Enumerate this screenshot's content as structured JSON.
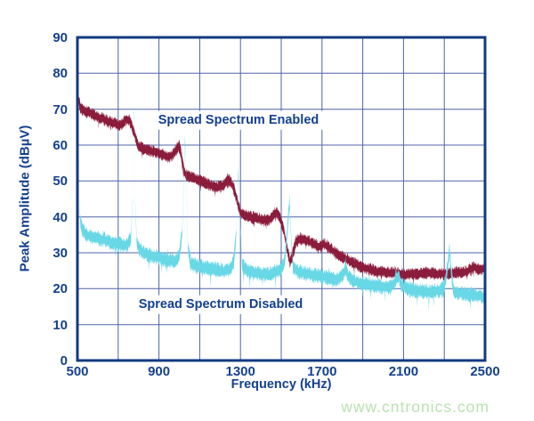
{
  "page": {
    "background": "#ffffff"
  },
  "watermark": {
    "text": "www.cntronics.com",
    "color": "#b9e2af"
  },
  "chart_data": {
    "type": "line",
    "title": "",
    "xlabel": "Frequency (kHz)",
    "ylabel": "Peak Amplitude (dBµV)",
    "xlim": [
      500,
      2500
    ],
    "ylim": [
      0,
      90
    ],
    "x_ticks": [
      500,
      900,
      1300,
      1700,
      2100,
      2500
    ],
    "y_ticks": [
      0,
      10,
      20,
      30,
      40,
      50,
      60,
      70,
      80,
      90
    ],
    "x_grid_step_khz": 200,
    "y_grid_step_db": 10,
    "grid": true,
    "legend_position": "inline-annotations",
    "colors": {
      "axis_border": "#123a7f",
      "grid": "#4d64a7",
      "label_text": "#14408f",
      "enabled": "#8b1c3c",
      "disabled": "#68d7e6"
    },
    "annotations": [
      {
        "text": "Spread Spectrum Enabled",
        "x_khz": 1290,
        "y_db": 67
      },
      {
        "text": "Spread Spectrum Disabled",
        "x_khz": 1205,
        "y_db": 15.5
      }
    ],
    "series": [
      {
        "key": "enabled",
        "name": "Spread Spectrum Enabled",
        "color_key": "enabled",
        "band_halfwidth_db": 1.3,
        "hair_db": 1.1,
        "points": [
          [
            500,
            60
          ],
          [
            501,
            68
          ],
          [
            503,
            74.5
          ],
          [
            506,
            72.5
          ],
          [
            512,
            71
          ],
          [
            520,
            70
          ],
          [
            535,
            69.5
          ],
          [
            560,
            69
          ],
          [
            590,
            68
          ],
          [
            620,
            67.5
          ],
          [
            650,
            66.5
          ],
          [
            680,
            66
          ],
          [
            705,
            65.5
          ],
          [
            722,
            66
          ],
          [
            738,
            67.3
          ],
          [
            752,
            67
          ],
          [
            766,
            65.5
          ],
          [
            778,
            63.5
          ],
          [
            788,
            61.5
          ],
          [
            800,
            59.5
          ],
          [
            825,
            59
          ],
          [
            855,
            58.5
          ],
          [
            890,
            58
          ],
          [
            920,
            57.3
          ],
          [
            945,
            56.6
          ],
          [
            962,
            57
          ],
          [
            980,
            58.3
          ],
          [
            997,
            59.6
          ],
          [
            1008,
            58
          ],
          [
            1018,
            54
          ],
          [
            1030,
            51.8
          ],
          [
            1060,
            51
          ],
          [
            1100,
            50.2
          ],
          [
            1140,
            49.2
          ],
          [
            1180,
            48.2
          ],
          [
            1215,
            48.8
          ],
          [
            1242,
            50.3
          ],
          [
            1258,
            49
          ],
          [
            1272,
            47.2
          ],
          [
            1288,
            43.5
          ],
          [
            1302,
            41
          ],
          [
            1330,
            40.3
          ],
          [
            1370,
            39.7
          ],
          [
            1405,
            39.2
          ],
          [
            1435,
            39
          ],
          [
            1458,
            40
          ],
          [
            1478,
            41.3
          ],
          [
            1492,
            39.8
          ],
          [
            1512,
            36.5
          ],
          [
            1528,
            31.5
          ],
          [
            1543,
            27.2
          ],
          [
            1556,
            29.5
          ],
          [
            1572,
            33
          ],
          [
            1592,
            34
          ],
          [
            1625,
            33.4
          ],
          [
            1655,
            32.8
          ],
          [
            1682,
            31.6
          ],
          [
            1706,
            32.4
          ],
          [
            1730,
            31.6
          ],
          [
            1760,
            30.4
          ],
          [
            1800,
            28.8
          ],
          [
            1840,
            27.6
          ],
          [
            1880,
            26.4
          ],
          [
            1920,
            25.6
          ],
          [
            1960,
            25
          ],
          [
            2010,
            24.6
          ],
          [
            2060,
            24.3
          ],
          [
            2110,
            24
          ],
          [
            2160,
            24.1
          ],
          [
            2210,
            24.4
          ],
          [
            2260,
            24
          ],
          [
            2310,
            24.1
          ],
          [
            2360,
            24.4
          ],
          [
            2410,
            24.8
          ],
          [
            2445,
            26
          ],
          [
            2470,
            25.4
          ],
          [
            2500,
            25.6
          ]
        ]
      },
      {
        "key": "disabled",
        "name": "Spread Spectrum Disabled",
        "color_key": "disabled",
        "band_halfwidth_db": 1.6,
        "hair_db": 2.2,
        "points": [
          [
            500,
            26
          ],
          [
            502,
            62
          ],
          [
            503,
            79
          ],
          [
            505,
            62
          ],
          [
            509,
            45
          ],
          [
            514,
            39
          ],
          [
            520,
            37
          ],
          [
            540,
            35.3
          ],
          [
            565,
            34.5
          ],
          [
            595,
            34
          ],
          [
            625,
            33.6
          ],
          [
            658,
            33
          ],
          [
            695,
            32.5
          ],
          [
            725,
            32
          ],
          [
            748,
            32.5
          ],
          [
            762,
            34
          ],
          [
            771,
            45
          ],
          [
            777,
            70
          ],
          [
            783,
            45
          ],
          [
            791,
            33
          ],
          [
            805,
            30.8
          ],
          [
            830,
            29.8
          ],
          [
            860,
            29.2
          ],
          [
            900,
            28.6
          ],
          [
            940,
            28
          ],
          [
            975,
            27.6
          ],
          [
            1000,
            29
          ],
          [
            1014,
            36
          ],
          [
            1022,
            50
          ],
          [
            1028,
            62
          ],
          [
            1034,
            50
          ],
          [
            1042,
            32
          ],
          [
            1055,
            27
          ],
          [
            1090,
            26.3
          ],
          [
            1130,
            25.8
          ],
          [
            1170,
            25.4
          ],
          [
            1210,
            25
          ],
          [
            1245,
            25.2
          ],
          [
            1266,
            27
          ],
          [
            1280,
            36
          ],
          [
            1289,
            53
          ],
          [
            1298,
            38
          ],
          [
            1308,
            26.5
          ],
          [
            1330,
            25
          ],
          [
            1365,
            24.4
          ],
          [
            1400,
            24
          ],
          [
            1440,
            24
          ],
          [
            1470,
            24.6
          ],
          [
            1500,
            25.4
          ],
          [
            1518,
            28
          ],
          [
            1532,
            38
          ],
          [
            1540,
            44
          ],
          [
            1549,
            34
          ],
          [
            1558,
            26
          ],
          [
            1580,
            24.8
          ],
          [
            1615,
            24.2
          ],
          [
            1650,
            23.8
          ],
          [
            1690,
            23.4
          ],
          [
            1730,
            23
          ],
          [
            1770,
            22.6
          ],
          [
            1800,
            23.4
          ],
          [
            1815,
            26
          ],
          [
            1828,
            23.2
          ],
          [
            1860,
            22
          ],
          [
            1900,
            21.5
          ],
          [
            1940,
            21
          ],
          [
            1985,
            20.6
          ],
          [
            2030,
            20.2
          ],
          [
            2060,
            22
          ],
          [
            2075,
            23.8
          ],
          [
            2090,
            21
          ],
          [
            2120,
            19.8
          ],
          [
            2160,
            19.5
          ],
          [
            2200,
            19.2
          ],
          [
            2240,
            19
          ],
          [
            2280,
            19.6
          ],
          [
            2300,
            20.4
          ],
          [
            2316,
            26
          ],
          [
            2325,
            31
          ],
          [
            2334,
            25
          ],
          [
            2344,
            19.4
          ],
          [
            2380,
            18.8
          ],
          [
            2420,
            18.4
          ],
          [
            2460,
            18
          ],
          [
            2500,
            17.6
          ]
        ]
      }
    ]
  }
}
